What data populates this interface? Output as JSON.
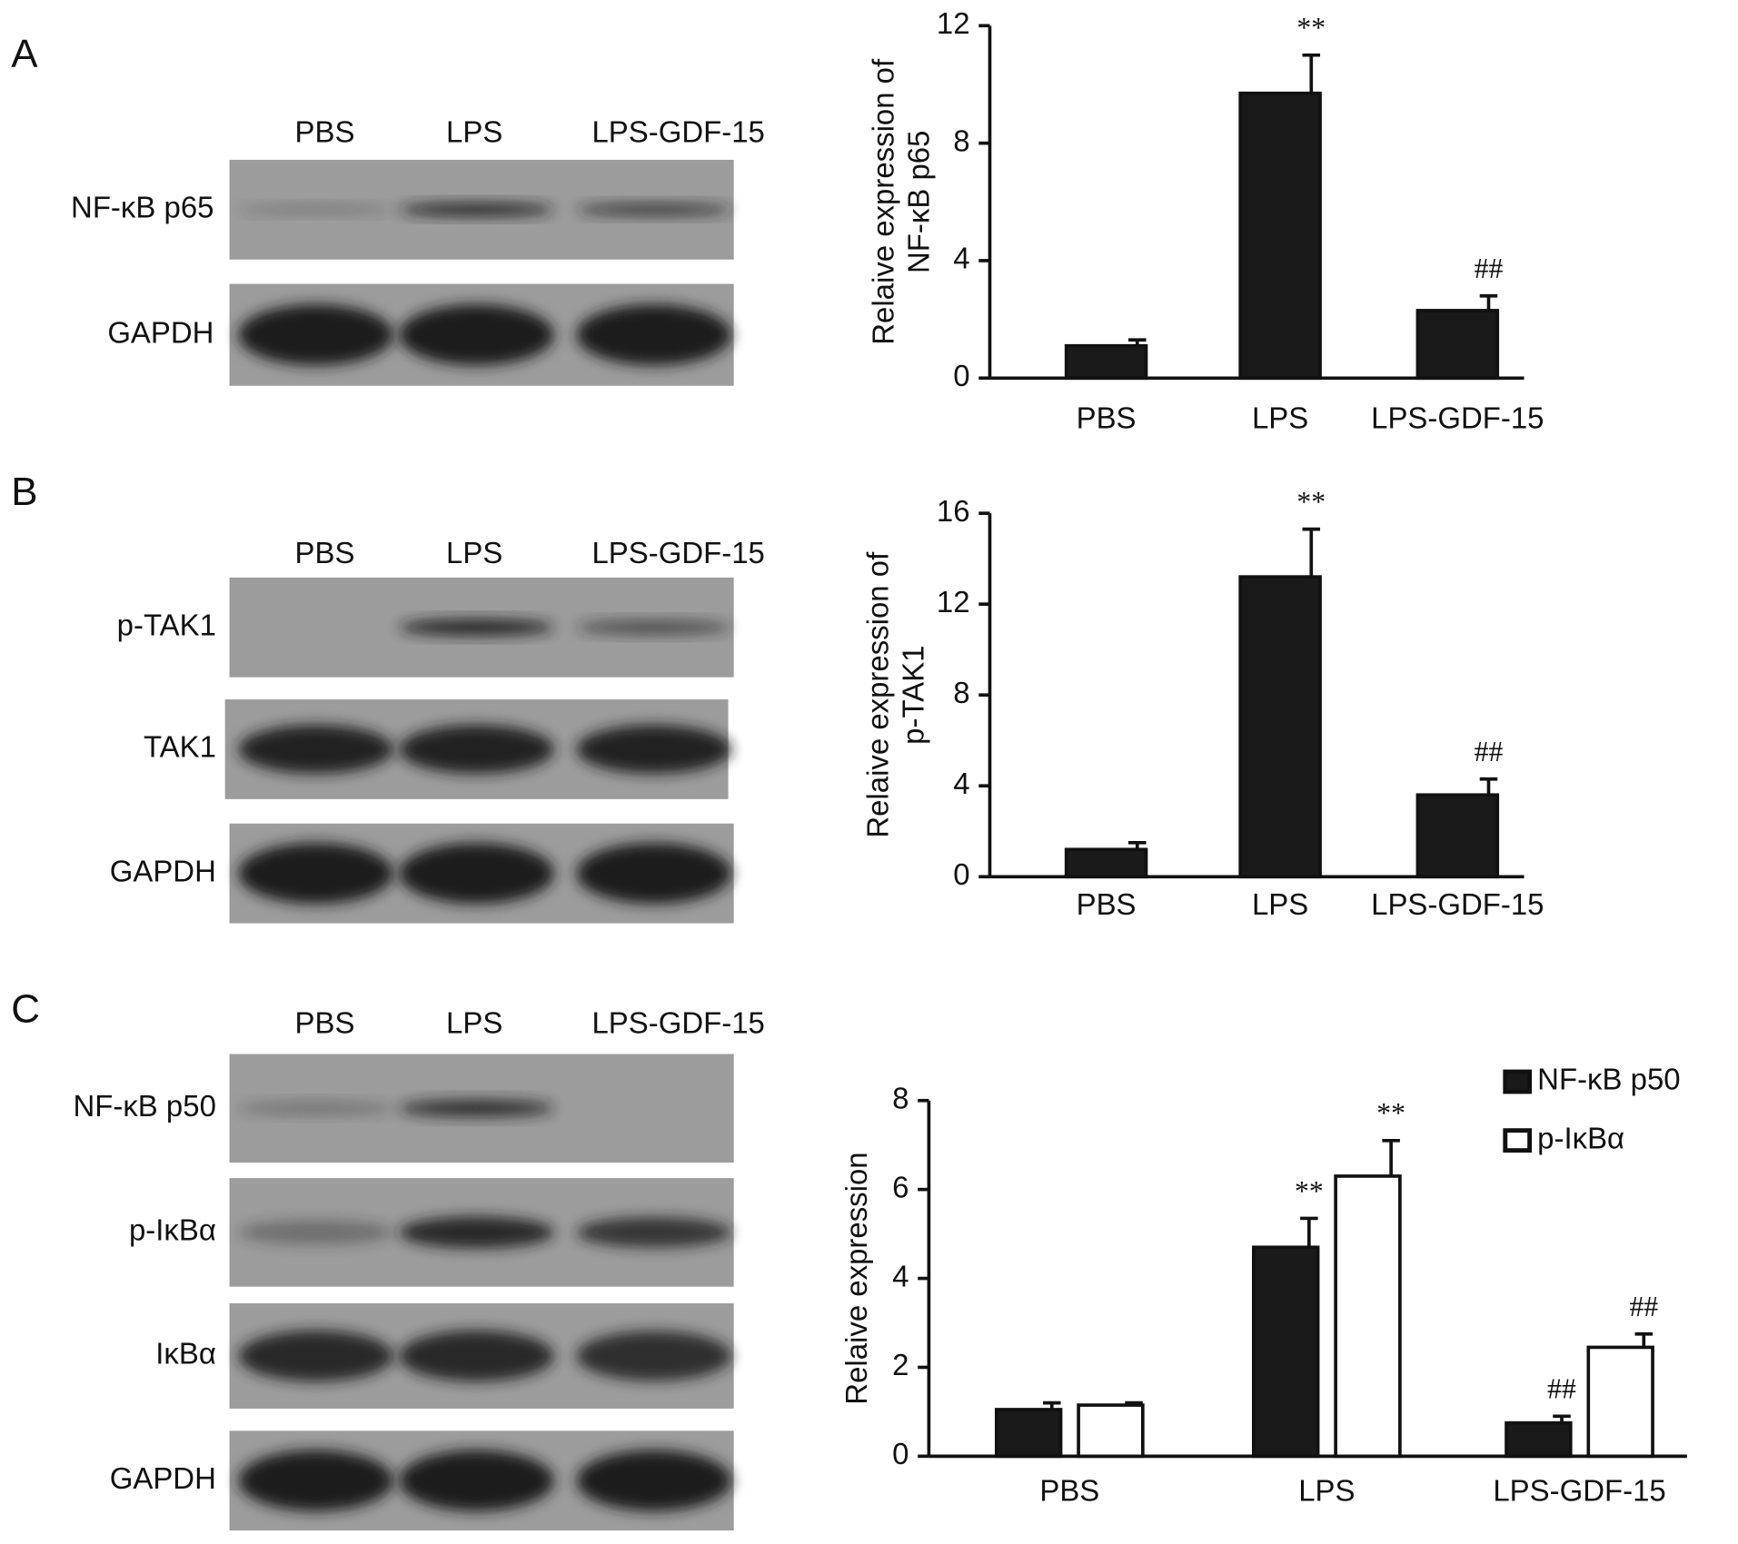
{
  "panels": [
    {
      "label": "A",
      "lanes": [
        "PBS",
        "LPS",
        "LPS-GDF-15"
      ],
      "rows": [
        "NF-κB p65",
        "GAPDH"
      ]
    },
    {
      "label": "B",
      "lanes": [
        "PBS",
        "LPS",
        "LPS-GDF-15"
      ],
      "rows": [
        "p-TAK1",
        "TAK1",
        "GAPDH"
      ]
    },
    {
      "label": "C",
      "lanes": [
        "PBS",
        "LPS",
        "LPS-GDF-15"
      ],
      "rows": [
        "NF-κB p50",
        "p-IκBα",
        "IκBα",
        "GAPDH"
      ]
    }
  ],
  "chart_data": [
    {
      "type": "bar",
      "y_label": [
        "Relaive expression of",
        "NF-κB p65"
      ],
      "categories": [
        "PBS",
        "LPS",
        "LPS-GDF-15"
      ],
      "values": [
        1.1,
        9.7,
        2.3
      ],
      "errors": [
        0.2,
        1.3,
        0.5
      ],
      "annotations": [
        null,
        "**",
        "##"
      ],
      "color": "#1a1a1a",
      "ylim": [
        0,
        12
      ],
      "yticks": [
        0,
        4,
        8,
        12
      ]
    },
    {
      "type": "bar",
      "y_label": [
        "Relaive expression of",
        "p-TAK1"
      ],
      "categories": [
        "PBS",
        "LPS",
        "LPS-GDF-15"
      ],
      "values": [
        1.2,
        13.2,
        3.6
      ],
      "errors": [
        0.3,
        2.1,
        0.7
      ],
      "annotations": [
        null,
        "**",
        "##"
      ],
      "color": "#1a1a1a",
      "ylim": [
        0,
        16
      ],
      "yticks": [
        0,
        4,
        8,
        12,
        16
      ]
    },
    {
      "type": "grouped-bar",
      "y_label": [
        "Relaive expression"
      ],
      "categories": [
        "PBS",
        "LPS",
        "LPS-GDF-15"
      ],
      "series": [
        {
          "name": "NF-κB p50",
          "color": "#1a1a1a",
          "values": [
            1.05,
            4.7,
            0.75
          ],
          "errors": [
            0.15,
            0.65,
            0.15
          ],
          "annotations": [
            null,
            "**",
            "##"
          ]
        },
        {
          "name": "p-IκBα",
          "color": "#ffffff",
          "values": [
            1.15,
            6.3,
            2.45
          ],
          "errors": [
            0.05,
            0.8,
            0.3
          ],
          "annotations": [
            null,
            "**",
            "##"
          ]
        }
      ],
      "ylim": [
        0,
        8
      ],
      "yticks": [
        0,
        2,
        4,
        6,
        8
      ],
      "legend": "upper right"
    }
  ]
}
